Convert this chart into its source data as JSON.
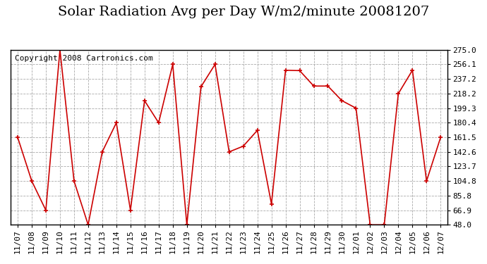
{
  "title": "Solar Radiation Avg per Day W/m2/minute 20081207",
  "copyright": "Copyright 2008 Cartronics.com",
  "dates": [
    "11/07",
    "11/08",
    "11/09",
    "11/10",
    "11/11",
    "11/12",
    "11/13",
    "11/14",
    "11/15",
    "11/16",
    "11/17",
    "11/18",
    "11/19",
    "11/20",
    "11/21",
    "11/22",
    "11/23",
    "11/24",
    "11/25",
    "11/26",
    "11/27",
    "11/28",
    "11/29",
    "11/30",
    "12/01",
    "12/02",
    "12/03",
    "12/04",
    "12/05",
    "12/06",
    "12/07"
  ],
  "values": [
    161.5,
    104.8,
    66.9,
    275.0,
    104.8,
    48.0,
    142.6,
    180.4,
    66.9,
    209.0,
    180.4,
    256.1,
    48.0,
    227.0,
    256.1,
    142.6,
    150.0,
    170.5,
    75.0,
    248.5,
    248.0,
    228.0,
    228.0,
    209.0,
    199.3,
    48.0,
    48.0,
    218.2,
    248.5,
    104.8,
    161.5
  ],
  "line_color": "#cc0000",
  "marker_color": "#cc0000",
  "bg_color": "#ffffff",
  "plot_bg_color": "#ffffff",
  "grid_color": "#aaaaaa",
  "ylim": [
    48.0,
    275.0
  ],
  "yticks": [
    48.0,
    66.9,
    85.8,
    104.8,
    123.7,
    142.6,
    161.5,
    180.4,
    199.3,
    218.2,
    237.2,
    256.1,
    275.0
  ],
  "title_fontsize": 14,
  "copyright_fontsize": 8,
  "tick_fontsize": 8
}
